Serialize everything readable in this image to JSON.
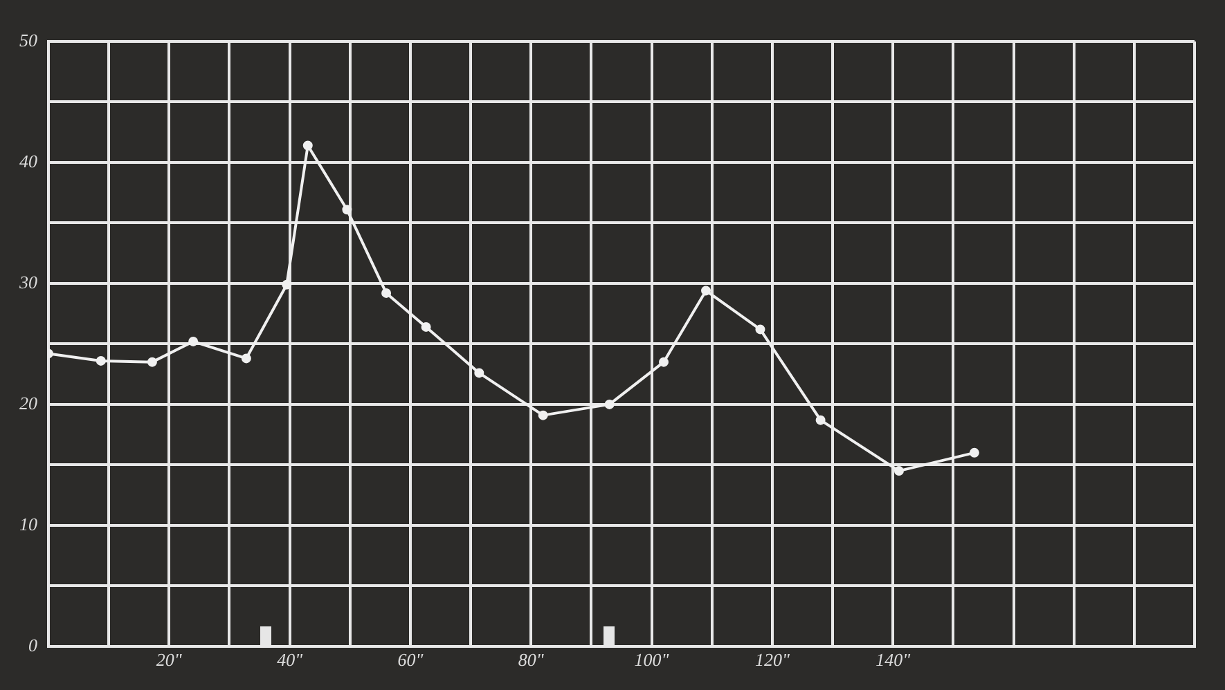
{
  "chart_data": {
    "type": "line",
    "x": [
      0,
      8.7,
      17.2,
      24,
      32.8,
      39.5,
      43,
      49.5,
      56,
      62.6,
      71.4,
      82,
      93,
      102,
      109,
      118,
      128,
      141,
      153.5
    ],
    "series": [
      {
        "color": "#f0f0f0",
        "values": [
          24.2,
          23.6,
          23.5,
          25.2,
          23.8,
          29.9,
          41.4,
          36.1,
          29.2,
          26.4,
          22.6,
          19.1,
          20,
          23.5,
          29.4,
          26.2,
          18.7,
          14.5,
          16
        ]
      }
    ],
    "xlim": [
      0,
      190
    ],
    "xticks": [
      {
        "value": 0,
        "label": null
      },
      {
        "value": 10,
        "label": null
      },
      {
        "value": 20,
        "label": "20\""
      },
      {
        "value": 30,
        "label": null
      },
      {
        "value": 40,
        "label": "40\""
      },
      {
        "value": 50,
        "label": null
      },
      {
        "value": 60,
        "label": "60\""
      },
      {
        "value": 70,
        "label": null
      },
      {
        "value": 80,
        "label": "80\""
      },
      {
        "value": 90,
        "label": null
      },
      {
        "value": 100,
        "label": "100\""
      },
      {
        "value": 110,
        "label": null
      },
      {
        "value": 120,
        "label": "120\""
      },
      {
        "value": 130,
        "label": null
      },
      {
        "value": 140,
        "label": "140\""
      },
      {
        "value": 150,
        "label": null
      },
      {
        "value": 160,
        "label": null
      },
      {
        "value": 170,
        "label": null
      },
      {
        "value": 180,
        "label": null
      },
      {
        "value": 190,
        "label": null
      }
    ],
    "ylim": [
      0,
      50
    ],
    "yticks": [
      0,
      {
        "value": 5,
        "label": null
      },
      10,
      {
        "value": 15,
        "label": null
      },
      20,
      {
        "value": 25,
        "label": null
      },
      30,
      {
        "value": 35,
        "label": null
      },
      40,
      {
        "value": 45,
        "label": null
      },
      50
    ],
    "grid": true,
    "legend": false,
    "marker": "circle",
    "line_style": "solid"
  }
}
